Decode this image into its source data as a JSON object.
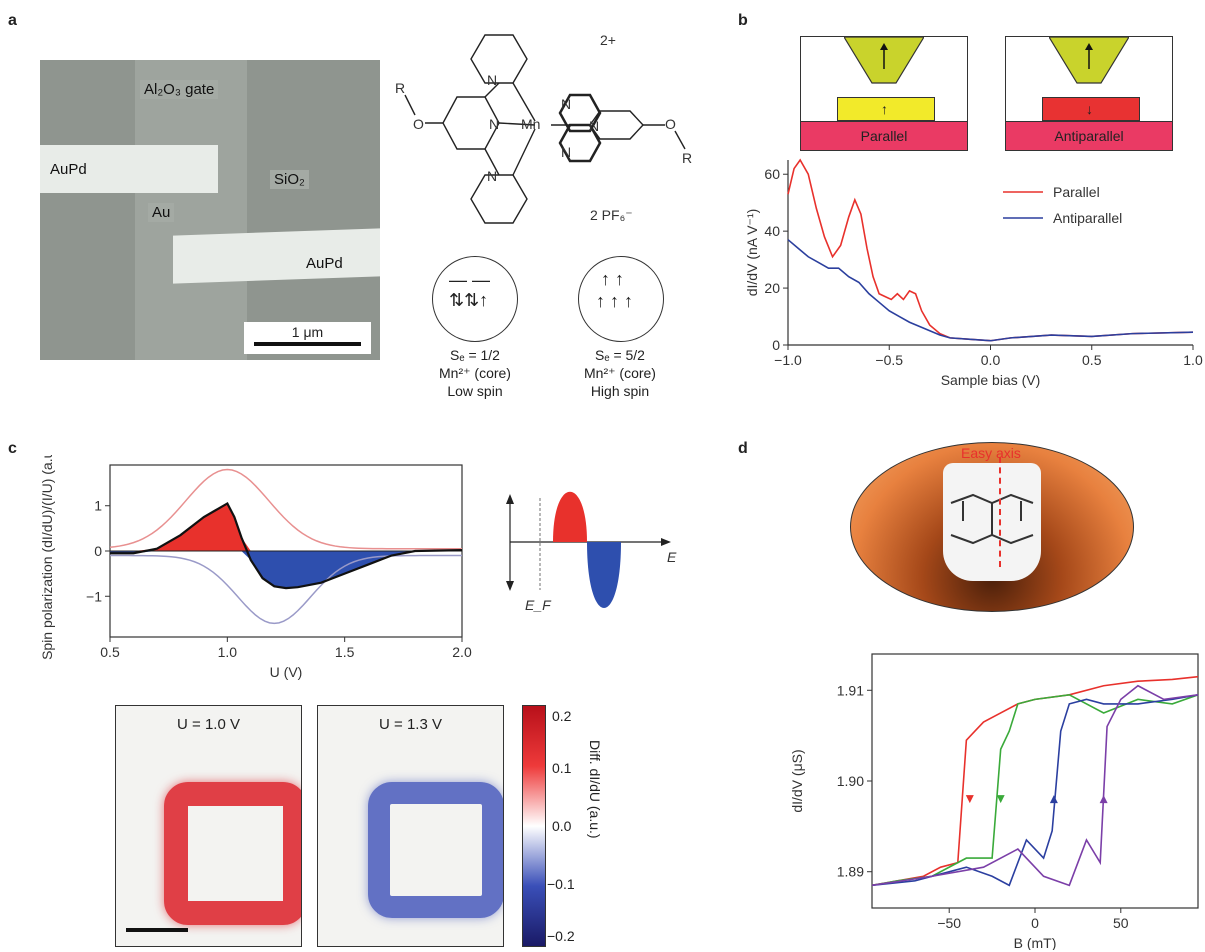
{
  "panels": {
    "a": "a",
    "b": "b",
    "c": "c",
    "d": "d"
  },
  "a": {
    "sem_labels": {
      "gate": "Al₂O₃ gate",
      "auPd_top": "AuPd",
      "sio2": "SiO₂",
      "au": "Au",
      "auPd_bottom": "AuPd",
      "scale": "1 μm"
    },
    "molecule": {
      "charge": "2+",
      "counter_ion": "2 PF₆⁻",
      "metal": "Mn",
      "substituent": "R",
      "oxygen": "O",
      "nitrogen": "N"
    },
    "low_spin": {
      "sc": "Sₑ = 1/2",
      "core": "Mn²⁺ (core)",
      "label": "Low spin",
      "color": "#6aaee0"
    },
    "high_spin": {
      "sc": "Sₑ = 5/2",
      "core": "Mn²⁺ (core)",
      "label": "High spin",
      "color": "#f5b227"
    }
  },
  "b": {
    "inset_parallel": "Parallel",
    "inset_antiparallel": "Antiparallel",
    "chart_data": {
      "type": "line",
      "xlabel": "Sample bias (V)",
      "ylabel": "dI/dV (nA V⁻¹)",
      "xlim": [
        -1.0,
        1.0
      ],
      "ylim": [
        0,
        65
      ],
      "xticks": [
        "−1.0",
        "−0.5",
        "0.0",
        "0.5",
        "1.0"
      ],
      "yticks": [
        "0",
        "20",
        "40",
        "60"
      ],
      "legend": "top-right",
      "series": [
        {
          "name": "Parallel",
          "color": "#e8312c",
          "x": [
            -1.0,
            -0.97,
            -0.94,
            -0.9,
            -0.86,
            -0.82,
            -0.78,
            -0.74,
            -0.7,
            -0.67,
            -0.64,
            -0.61,
            -0.58,
            -0.55,
            -0.52,
            -0.49,
            -0.46,
            -0.43,
            -0.4,
            -0.37,
            -0.34,
            -0.3,
            -0.25,
            -0.2,
            -0.1,
            0.0,
            0.1,
            0.3,
            0.5,
            0.7,
            1.0
          ],
          "y": [
            53,
            62,
            65,
            60,
            48,
            38,
            31,
            35,
            45,
            51,
            46,
            34,
            24,
            18,
            17,
            16,
            18,
            16,
            19,
            18,
            12,
            7,
            4,
            2.5,
            2,
            1.5,
            2.5,
            3.5,
            3,
            4,
            4.5
          ]
        },
        {
          "name": "Antiparallel",
          "color": "#2b3f9e",
          "x": [
            -1.0,
            -0.95,
            -0.9,
            -0.85,
            -0.8,
            -0.75,
            -0.7,
            -0.65,
            -0.6,
            -0.55,
            -0.5,
            -0.45,
            -0.4,
            -0.35,
            -0.3,
            -0.25,
            -0.2,
            -0.1,
            0.0,
            0.1,
            0.3,
            0.5,
            0.7,
            1.0
          ],
          "y": [
            37,
            34,
            31,
            29,
            27,
            27,
            24,
            22,
            18,
            15,
            12,
            10,
            8,
            6.5,
            5,
            3.5,
            2.5,
            2,
            1.5,
            2.5,
            3.5,
            3,
            4,
            4.5
          ]
        }
      ]
    }
  },
  "c": {
    "chart_data": {
      "type": "line",
      "xlabel": "U (V)",
      "ylabel": "Spin polarization (dI/dU)/(I/U) (a.u.)",
      "xlim": [
        0.5,
        2.0
      ],
      "ylim": [
        -1.9,
        1.9
      ],
      "xticks": [
        "0.5",
        "1.0",
        "1.5",
        "2.0"
      ],
      "yticks": [
        "1",
        "0",
        "−1"
      ],
      "series": [
        {
          "name": "",
          "color": "#111",
          "x": [
            0.5,
            0.6,
            0.7,
            0.8,
            0.9,
            0.95,
            1.0,
            1.03,
            1.06,
            1.1,
            1.15,
            1.2,
            1.25,
            1.3,
            1.4,
            1.5,
            1.6,
            1.7,
            1.8,
            2.0
          ],
          "y": [
            -0.05,
            -0.05,
            0.05,
            0.35,
            0.75,
            0.9,
            1.05,
            0.75,
            0.3,
            -0.2,
            -0.6,
            -0.78,
            -0.82,
            -0.8,
            -0.7,
            -0.5,
            -0.3,
            -0.1,
            0.0,
            0.02
          ]
        }
      ],
      "inset": {
        "x_axis": "E",
        "fermi": "E_F"
      }
    },
    "maps": {
      "left": "U = 1.0 V",
      "right": "U = 1.3 V"
    },
    "colorbar": {
      "ticks": [
        "0.2",
        "0.1",
        "0.0",
        "−0.1",
        "−0.2"
      ],
      "label": "Diff. dI/dU (a.u.)"
    }
  },
  "d": {
    "easy_axis": "Easy axis",
    "chart_data": {
      "type": "line",
      "xlabel": "B (mT)",
      "ylabel": "dI/dV (μS)",
      "xlim": [
        -95,
        95
      ],
      "ylim": [
        1.886,
        1.914
      ],
      "xticks": [
        "−50",
        "0",
        "50"
      ],
      "yticks": [
        "1.91",
        "1.90",
        "1.89"
      ],
      "series": [
        {
          "name": "",
          "color": "#e8312c",
          "x": [
            -95,
            -80,
            -65,
            -55,
            -45,
            -40,
            -35,
            -30,
            -20,
            -10,
            0,
            20,
            40,
            60,
            80,
            95
          ],
          "y": [
            1.8885,
            1.889,
            1.8895,
            1.8905,
            1.891,
            1.9045,
            1.9055,
            1.9065,
            1.9075,
            1.9085,
            1.909,
            1.9095,
            1.9105,
            1.911,
            1.9112,
            1.9115
          ]
        },
        {
          "name": "",
          "color": "#3aaa3a",
          "x": [
            -95,
            -80,
            -60,
            -40,
            -25,
            -20,
            -15,
            -10,
            0,
            20,
            40,
            60,
            80,
            95
          ],
          "y": [
            1.8885,
            1.889,
            1.8895,
            1.8915,
            1.8915,
            1.9035,
            1.9055,
            1.9085,
            1.909,
            1.9095,
            1.9075,
            1.909,
            1.9085,
            1.9095
          ]
        },
        {
          "name": "",
          "color": "#2b3fa0",
          "x": [
            -95,
            -70,
            -40,
            -25,
            -15,
            -5,
            5,
            10,
            15,
            20,
            30,
            40,
            60,
            80,
            95
          ],
          "y": [
            1.8885,
            1.889,
            1.8905,
            1.8895,
            1.8885,
            1.8935,
            1.8915,
            1.8945,
            1.9055,
            1.9085,
            1.909,
            1.9085,
            1.9085,
            1.909,
            1.9095
          ]
        },
        {
          "name": "",
          "color": "#7b3fa8",
          "x": [
            -95,
            -60,
            -30,
            -10,
            5,
            20,
            30,
            38,
            42,
            50,
            60,
            75,
            95
          ],
          "y": [
            1.8885,
            1.8895,
            1.8905,
            1.8925,
            1.8895,
            1.8885,
            1.8935,
            1.891,
            1.906,
            1.909,
            1.9105,
            1.909,
            1.9095
          ]
        }
      ]
    }
  }
}
